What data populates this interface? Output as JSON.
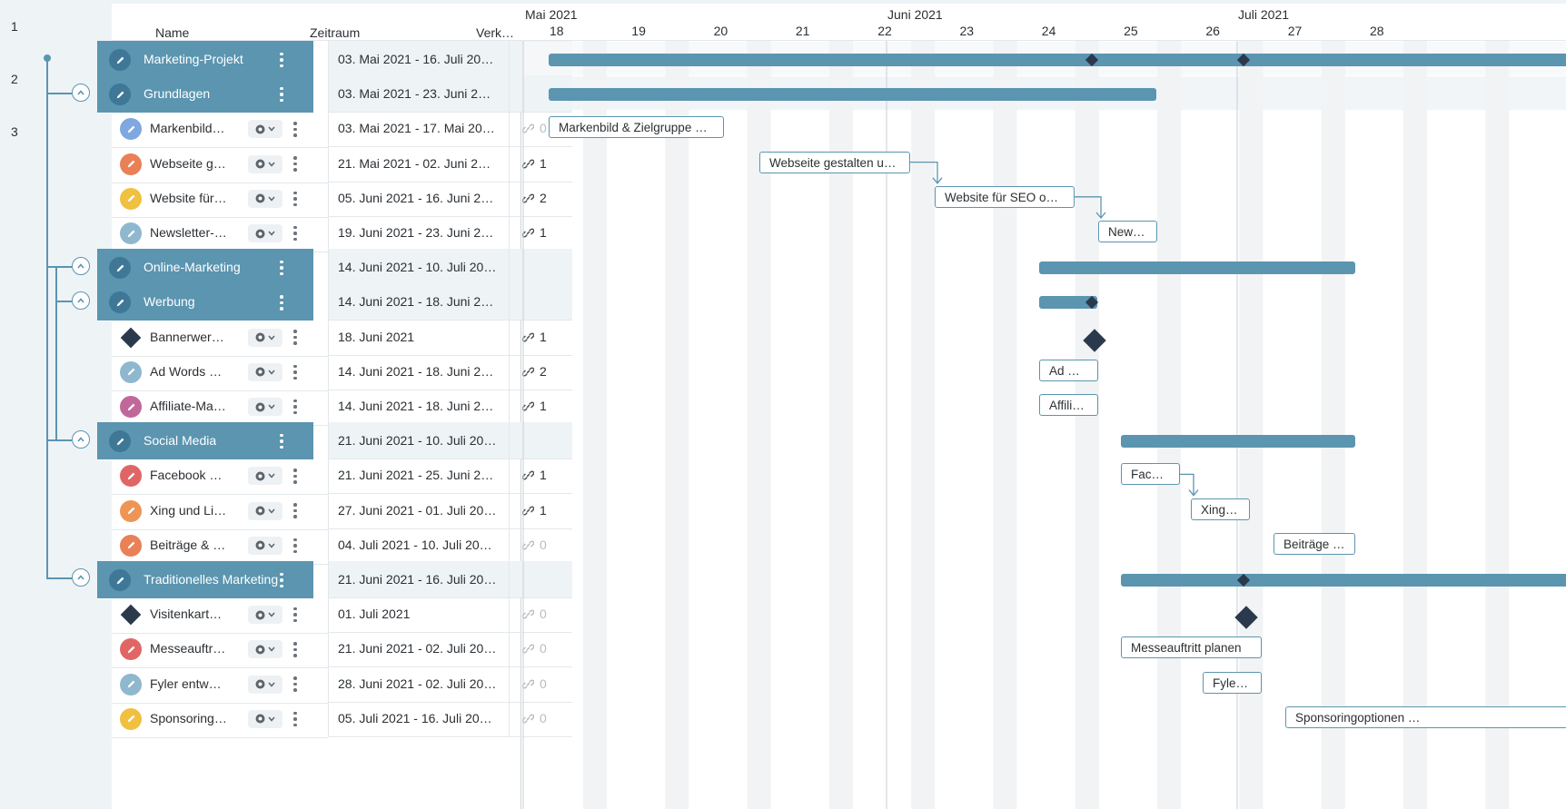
{
  "levels": [
    "1",
    "2",
    "3"
  ],
  "header": {
    "name": "Name",
    "period": "Zeitraum",
    "links": "Verk…"
  },
  "timeline": {
    "months": [
      "Mai 2021",
      "Juni 2021",
      "Juli 2021"
    ],
    "weeks": [
      "18",
      "19",
      "20",
      "21",
      "22",
      "23",
      "24",
      "25",
      "26",
      "27",
      "28"
    ]
  },
  "colors": {
    "group": "#5b95b0",
    "milestone": "#2a3a4c",
    "blue": "#7fa7e0",
    "orange": "#e98056",
    "yellow": "#f0c040",
    "lightblue": "#8fb8cf",
    "red": "#e06666",
    "darkorange": "#ee9455",
    "purple": "#c1679a"
  },
  "rows": [
    {
      "type": "group",
      "label": "Marketing-Projekt",
      "period": "03. Mai 2021 - 16. Juli 20…",
      "links": ""
    },
    {
      "type": "group",
      "label": "Grundlagen",
      "period": "03. Mai 2021 - 23. Juni 2…",
      "links": ""
    },
    {
      "type": "task",
      "label": "Markenbild & …",
      "color": "blue",
      "period": "03. Mai 2021 - 17. Mai 20…",
      "links": "0"
    },
    {
      "type": "task",
      "label": "Webseite ges…",
      "color": "orange",
      "period": "21. Mai 2021 - 02. Juni 2…",
      "links": "1"
    },
    {
      "type": "task",
      "label": "Website für S…",
      "color": "yellow",
      "period": "05. Juni 2021 - 16. Juni 2…",
      "links": "2"
    },
    {
      "type": "task",
      "label": "Newsletter-M…",
      "color": "lightblue",
      "period": "19. Juni 2021 - 23. Juni 2…",
      "links": "1"
    },
    {
      "type": "group",
      "label": "Online-Marketing",
      "period": "14. Juni 2021 - 10. Juli 20…",
      "links": ""
    },
    {
      "type": "group",
      "label": "Werbung",
      "period": "14. Juni 2021 - 18. Juni 2…",
      "links": ""
    },
    {
      "type": "milestone",
      "label": "Bannerwerbu…",
      "period": "18. Juni 2021",
      "links": "1"
    },
    {
      "type": "task",
      "label": "Ad Words ein…",
      "color": "lightblue",
      "period": "14. Juni 2021 - 18. Juni 2…",
      "links": "2"
    },
    {
      "type": "task",
      "label": "Affiliate-Mark…",
      "color": "purple",
      "period": "14. Juni 2021 - 18. Juni 2…",
      "links": "1"
    },
    {
      "type": "group",
      "label": "Social Media",
      "period": "21. Juni 2021 - 10. Juli 20…",
      "links": ""
    },
    {
      "type": "task",
      "label": "Facebook & I…",
      "color": "red",
      "period": "21. Juni 2021 - 25. Juni 2…",
      "links": "1"
    },
    {
      "type": "task",
      "label": "Xing und Link…",
      "color": "darkorange",
      "period": "27. Juni 2021 - 01. Juli 20…",
      "links": "1"
    },
    {
      "type": "task",
      "label": "Beiträge & Po…",
      "color": "orange",
      "period": "04. Juli 2021 - 10. Juli 20…",
      "links": "0"
    },
    {
      "type": "group",
      "label": "Traditionelles Marketing",
      "period": "21. Juni 2021 - 16. Juli 20…",
      "links": ""
    },
    {
      "type": "milestone",
      "label": "Visitenkarten…",
      "period": "01. Juli 2021",
      "links": "0"
    },
    {
      "type": "task",
      "label": "Messeauftritt…",
      "color": "red",
      "period": "21. Juni 2021 - 02. Juli 20…",
      "links": "0"
    },
    {
      "type": "task",
      "label": "Fyler entwerf…",
      "color": "lightblue",
      "period": "28. Juni 2021 - 02. Juli 20…",
      "links": "0"
    },
    {
      "type": "task",
      "label": "Sponsoringo…",
      "color": "yellow",
      "period": "05. Juli 2021 - 16. Juli 20…",
      "links": "0"
    }
  ],
  "bars": [
    "Markenbild & Zielgruppe de…",
    "Webseite gestalten und…",
    "Website für SEO opti…",
    "News…",
    "Ad W…",
    "Affili…",
    "Face…",
    "Xing …",
    "Beiträge &…",
    "Messeauftritt planen",
    "Fyler …",
    "Sponsoringoptionen …"
  ]
}
